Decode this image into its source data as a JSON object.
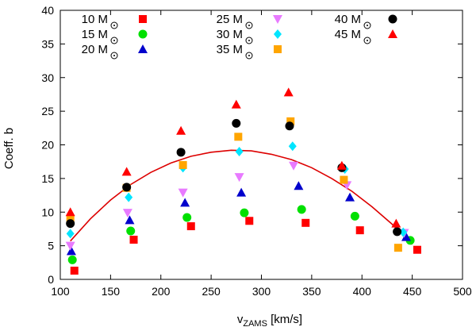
{
  "chart_data": {
    "type": "scatter",
    "xlabel": "v",
    "xlabel_sub": "ZAMS",
    "xlabel_unit": " [km/s]",
    "ylabel": "Coeff. b",
    "xlim": [
      100,
      500
    ],
    "ylim": [
      0,
      40
    ],
    "xticks": [
      "100",
      "150",
      "200",
      "250",
      "300",
      "350",
      "400",
      "450",
      "500"
    ],
    "yticks": [
      "0",
      "5",
      "10",
      "15",
      "20",
      "25",
      "30",
      "35",
      "40"
    ],
    "grid": false,
    "legend_position": "top",
    "legend_unit": "M",
    "series": [
      {
        "name": "10",
        "marker": "square",
        "color": "#ff0000",
        "points": [
          [
            114,
            1.3
          ],
          [
            173,
            5.9
          ],
          [
            230,
            7.9
          ],
          [
            288,
            8.7
          ],
          [
            344,
            8.4
          ],
          [
            398,
            7.3
          ],
          [
            455,
            4.4
          ]
        ]
      },
      {
        "name": "15",
        "marker": "circle",
        "color": "#00e000",
        "points": [
          [
            112,
            2.9
          ],
          [
            170,
            7.2
          ],
          [
            226,
            9.2
          ],
          [
            283,
            9.9
          ],
          [
            340,
            10.4
          ],
          [
            393,
            9.4
          ],
          [
            448,
            5.8
          ]
        ]
      },
      {
        "name": "20",
        "marker": "triangle-up",
        "color": "#0000cc",
        "points": [
          [
            111,
            4.2
          ],
          [
            169,
            8.8
          ],
          [
            224,
            11.4
          ],
          [
            280,
            12.9
          ],
          [
            337,
            13.9
          ],
          [
            388,
            12.2
          ],
          [
            444,
            6.3
          ]
        ]
      },
      {
        "name": "25",
        "marker": "triangle-down",
        "color": "#e87aff",
        "points": [
          [
            110,
            5.0
          ],
          [
            167,
            9.9
          ],
          [
            222,
            12.9
          ],
          [
            278,
            15.2
          ],
          [
            332,
            16.9
          ],
          [
            385,
            14.0
          ],
          [
            442,
            6.9
          ]
        ]
      },
      {
        "name": "30",
        "marker": "diamond",
        "color": "#00e5ff",
        "points": [
          [
            110,
            6.8
          ],
          [
            168,
            12.2
          ],
          [
            222,
            16.6
          ],
          [
            278,
            19.0
          ],
          [
            331,
            19.8
          ],
          [
            383,
            16.4
          ],
          [
            441,
            7.0
          ]
        ]
      },
      {
        "name": "35",
        "marker": "square",
        "color": "#ffa500",
        "points": [
          [
            110,
            8.9
          ],
          [
            166,
            13.6
          ],
          [
            222,
            17.0
          ],
          [
            277,
            21.2
          ],
          [
            329,
            23.5
          ],
          [
            382,
            14.8
          ],
          [
            436,
            4.7
          ]
        ]
      },
      {
        "name": "40",
        "marker": "circle",
        "color": "#000000",
        "points": [
          [
            110,
            8.3
          ],
          [
            166,
            13.7
          ],
          [
            220,
            18.9
          ],
          [
            275,
            23.2
          ],
          [
            328,
            22.8
          ],
          [
            380,
            16.6
          ],
          [
            435,
            7.1
          ]
        ]
      },
      {
        "name": "45",
        "marker": "triangle-up",
        "color": "#ff0000",
        "points": [
          [
            110,
            10.0
          ],
          [
            166,
            16.0
          ],
          [
            220,
            22.1
          ],
          [
            275,
            26.0
          ],
          [
            327,
            27.8
          ],
          [
            380,
            16.9
          ],
          [
            434,
            8.3
          ]
        ]
      }
    ],
    "fit_curve": {
      "color": "#dd0000",
      "points": [
        [
          110,
          5.7
        ],
        [
          130,
          9.0
        ],
        [
          150,
          11.8
        ],
        [
          170,
          14.1
        ],
        [
          190,
          15.9
        ],
        [
          210,
          17.3
        ],
        [
          230,
          18.3
        ],
        [
          250,
          18.9
        ],
        [
          270,
          19.2
        ],
        [
          290,
          19.1
        ],
        [
          310,
          18.6
        ],
        [
          330,
          17.8
        ],
        [
          350,
          16.6
        ],
        [
          370,
          15.0
        ],
        [
          390,
          13.1
        ],
        [
          410,
          10.8
        ],
        [
          430,
          8.2
        ],
        [
          450,
          5.2
        ]
      ]
    }
  }
}
